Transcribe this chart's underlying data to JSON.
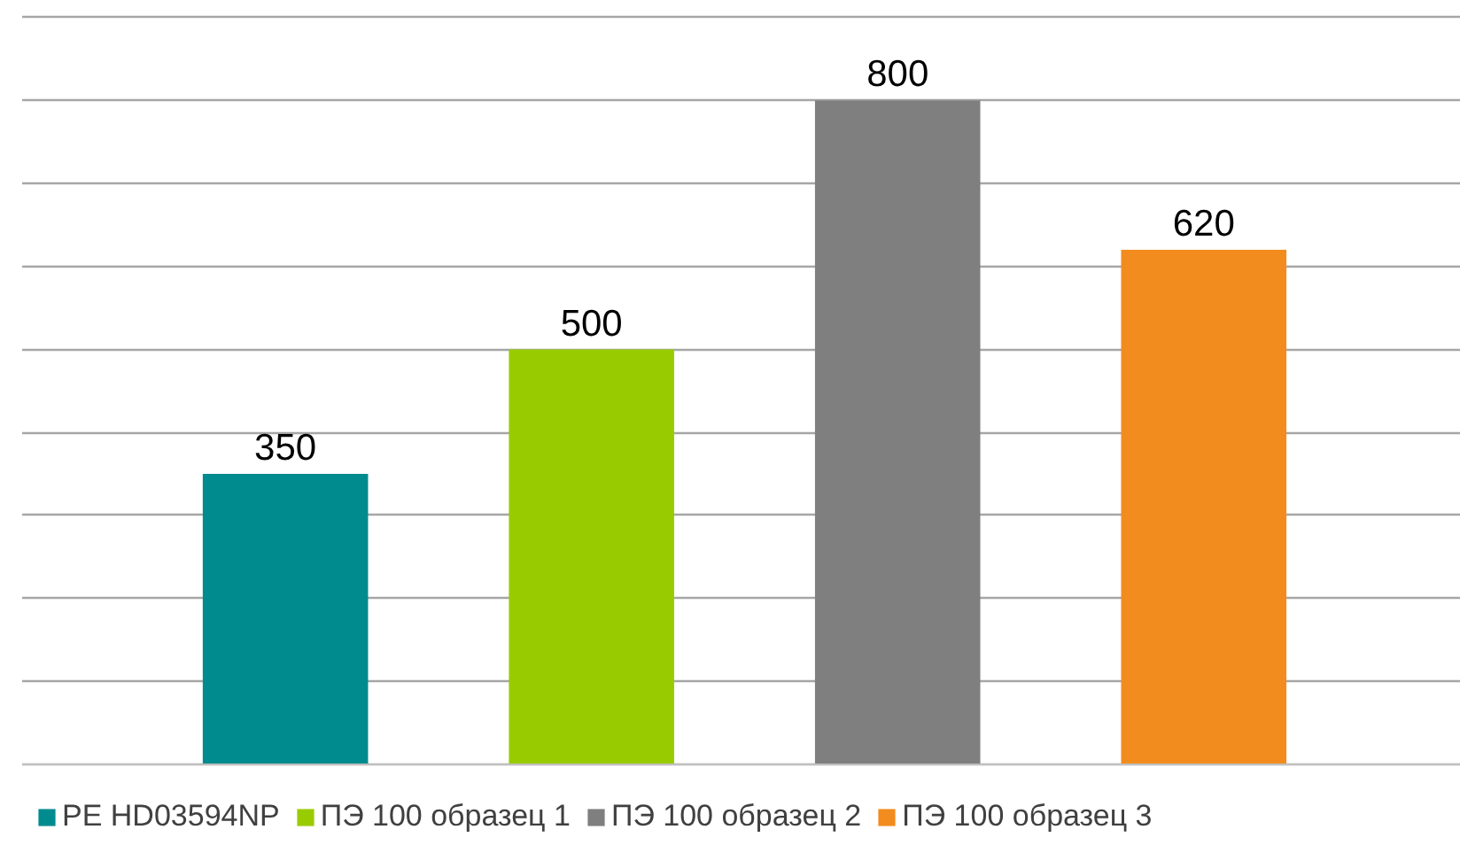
{
  "chart_data": {
    "type": "bar",
    "stacked": true,
    "categories": [
      null,
      null,
      null,
      null
    ],
    "series": [
      {
        "name": "PE HD03594NP",
        "color": "#008b8f",
        "values": [
          350,
          null,
          null,
          null
        ]
      },
      {
        "name": "ПЭ 100 образец 1",
        "color": "#99cc00",
        "values": [
          null,
          500,
          null,
          null
        ]
      },
      {
        "name": "ПЭ 100 образец 2",
        "color": "#7f7f7f",
        "values": [
          null,
          null,
          800,
          null
        ]
      },
      {
        "name": "ПЭ 100 образец 3",
        "color": "#f28c1e",
        "values": [
          null,
          null,
          null,
          620
        ]
      }
    ],
    "tick_labels": false,
    "grid": "y",
    "legend": "bottom",
    "data_labels": true
  }
}
